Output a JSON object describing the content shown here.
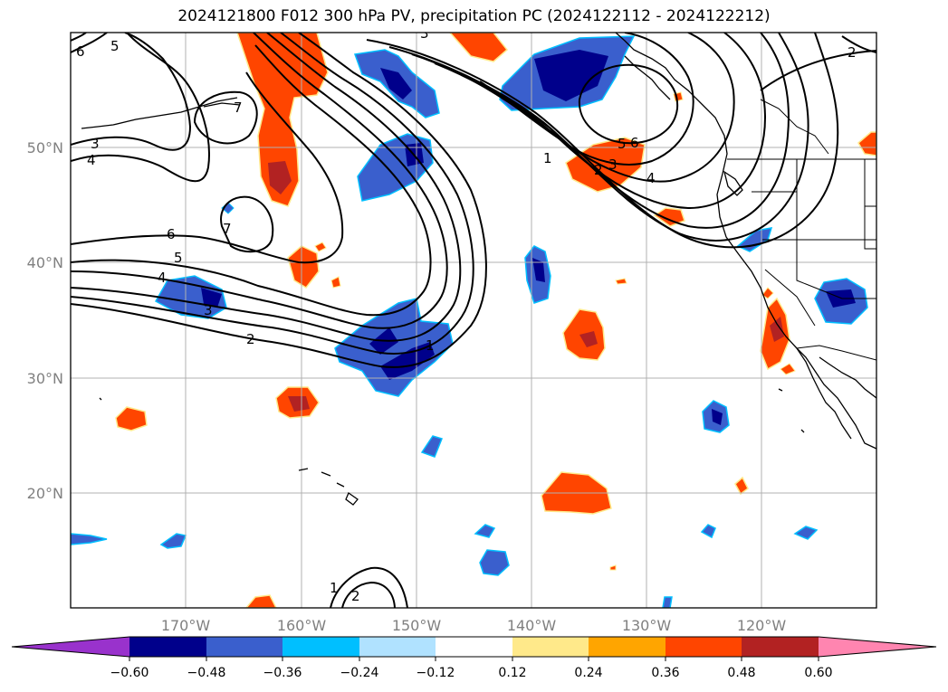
{
  "title": "2024121800 F012 300 hPa PV, precipitation PC (2024122112 - 2024122212)",
  "map": {
    "lon_range": [
      -180,
      -110
    ],
    "lat_range": [
      10,
      60
    ],
    "lon_ticks": [
      {
        "lon": -170,
        "label": "170°W"
      },
      {
        "lon": -160,
        "label": "160°W"
      },
      {
        "lon": -150,
        "label": "150°W"
      },
      {
        "lon": -140,
        "label": "140°W"
      },
      {
        "lon": -130,
        "label": "130°W"
      },
      {
        "lon": -120,
        "label": "120°W"
      }
    ],
    "lat_ticks": [
      {
        "lat": 50,
        "label": "50°N"
      },
      {
        "lat": 40,
        "label": "40°N"
      },
      {
        "lat": 30,
        "label": "30°N"
      },
      {
        "lat": 20,
        "label": "20°N"
      }
    ],
    "grid": true,
    "contour_labels": [
      "1",
      "2",
      "3",
      "4",
      "5",
      "6",
      "7"
    ]
  },
  "colorbar": {
    "ticks": [
      "−0.60",
      "−0.48",
      "−0.36",
      "−0.24",
      "−0.12",
      "0.12",
      "0.24",
      "0.36",
      "0.48",
      "0.60"
    ],
    "colors": [
      "#9932cc",
      "#00008b",
      "#3a5fcd",
      "#00bfff",
      "#b0e2ff",
      "#ffffff",
      "#ffe98a",
      "#ffa500",
      "#ff4500",
      "#b22222",
      "#ff85b0"
    ]
  },
  "colors": {
    "neg_strong": "#00008b",
    "neg_mid": "#3a5fcd",
    "neg_light": "#00bfff",
    "pos_light": "#ffe98a",
    "pos_mid": "#ff4500",
    "pos_strong": "#b22222",
    "grid": "#b0b0b0",
    "contour": "#000000"
  }
}
